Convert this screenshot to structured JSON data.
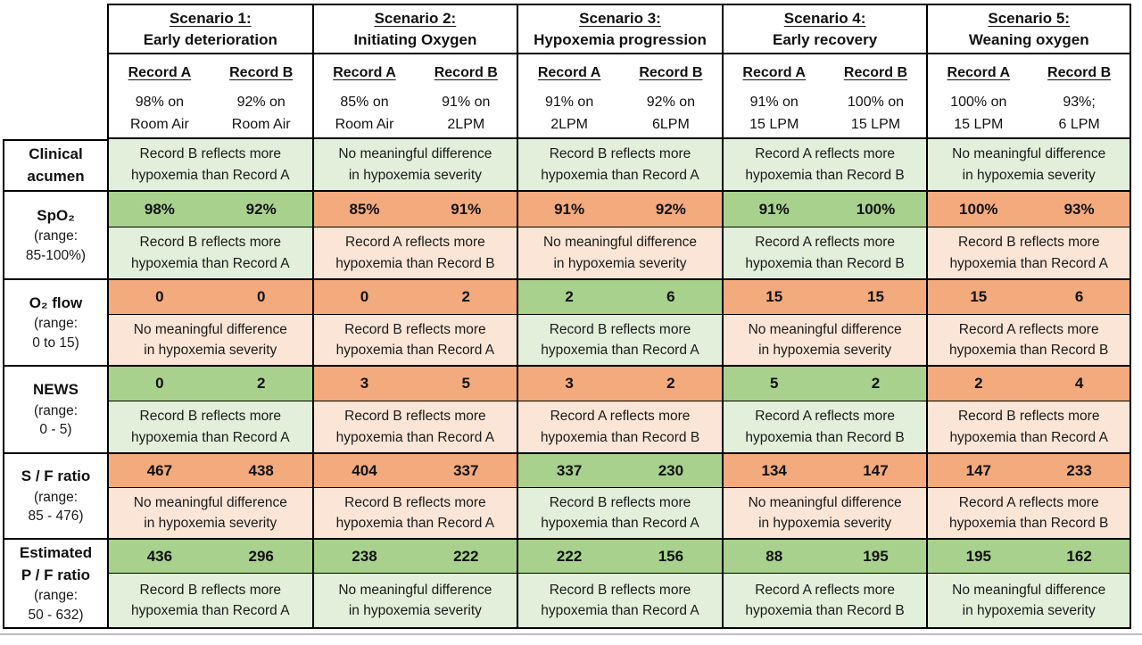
{
  "colors": {
    "border": "#000000",
    "value_green": "#a9d18e",
    "value_orange": "#f3aa7d",
    "verdict_green": "#e2efda",
    "verdict_orange": "#fbe5d6",
    "shadow": "#bdbdbd"
  },
  "scenarios": [
    {
      "title": "Scenario 1:",
      "subtitle": "Early deterioration",
      "record_a": "Record A",
      "record_b": "Record B",
      "a1": "98% on",
      "a2": "Room Air",
      "b1": "92% on",
      "b2": "Room Air"
    },
    {
      "title": "Scenario 2:",
      "subtitle": "Initiating Oxygen",
      "record_a": "Record A",
      "record_b": "Record B",
      "a1": "85% on",
      "a2": "Room Air",
      "b1": "91% on",
      "b2": "2LPM"
    },
    {
      "title": "Scenario 3:",
      "subtitle": "Hypoxemia progression",
      "record_a": "Record A",
      "record_b": "Record B",
      "a1": "91% on",
      "a2": "2LPM",
      "b1": "92% on",
      "b2": "6LPM"
    },
    {
      "title": "Scenario 4:",
      "subtitle": "Early recovery",
      "record_a": "Record A",
      "record_b": "Record B",
      "a1": "91% on",
      "a2": "15 LPM",
      "b1": "100% on",
      "b2": "15 LPM"
    },
    {
      "title": "Scenario 5:",
      "subtitle": "Weaning oxygen",
      "record_a": "Record A",
      "record_b": "Record B",
      "a1": "100% on",
      "a2": "15 LPM",
      "b1": "93%;",
      "b2": "6 LPM"
    }
  ],
  "acumen": {
    "n1": "Clinical",
    "n2": "acumen",
    "cells": [
      {
        "tone": "green",
        "v1": "Record B reflects more",
        "v2": "hypoxemia than Record A"
      },
      {
        "tone": "green",
        "v1": "No meaningful difference",
        "v2": "in hypoxemia severity"
      },
      {
        "tone": "green",
        "v1": "Record B reflects more",
        "v2": "hypoxemia than Record A"
      },
      {
        "tone": "green",
        "v1": "Record A reflects more",
        "v2": "hypoxemia than Record B"
      },
      {
        "tone": "green",
        "v1": "No meaningful difference",
        "v2": "in hypoxemia severity"
      }
    ]
  },
  "metrics": [
    {
      "n1": "SpO₂",
      "n2": "",
      "r1": "(range:",
      "r2": "85-100%)",
      "cells": [
        {
          "a": "98%",
          "b": "92%",
          "tone": "green",
          "v1": "Record B reflects more",
          "v2": "hypoxemia than Record A"
        },
        {
          "a": "85%",
          "b": "91%",
          "tone": "orange",
          "v1": "Record A reflects more",
          "v2": "hypoxemia than Record B"
        },
        {
          "a": "91%",
          "b": "92%",
          "tone": "orange",
          "v1": "No meaningful difference",
          "v2": "in hypoxemia severity"
        },
        {
          "a": "91%",
          "b": "100%",
          "tone": "green",
          "v1": "Record A reflects more",
          "v2": "hypoxemia than Record B"
        },
        {
          "a": "100%",
          "b": "93%",
          "tone": "orange",
          "v1": "Record B reflects more",
          "v2": "hypoxemia than Record A"
        }
      ]
    },
    {
      "n1": "O₂ flow",
      "n2": "",
      "r1": "(range:",
      "r2": "0 to 15)",
      "cells": [
        {
          "a": "0",
          "b": "0",
          "tone": "orange",
          "v1": "No meaningful difference",
          "v2": "in hypoxemia severity"
        },
        {
          "a": "0",
          "b": "2",
          "tone": "orange",
          "v1": "Record B reflects more",
          "v2": "hypoxemia than Record A"
        },
        {
          "a": "2",
          "b": "6",
          "tone": "green",
          "v1": "Record B reflects more",
          "v2": "hypoxemia than Record A"
        },
        {
          "a": "15",
          "b": "15",
          "tone": "orange",
          "v1": "No meaningful difference",
          "v2": "in hypoxemia severity"
        },
        {
          "a": "15",
          "b": "6",
          "tone": "orange",
          "v1": "Record A reflects more",
          "v2": "hypoxemia than Record B"
        }
      ]
    },
    {
      "n1": "NEWS",
      "n2": "",
      "r1": "(range:",
      "r2": "0 - 5)",
      "cells": [
        {
          "a": "0",
          "b": "2",
          "tone": "green",
          "v1": "Record B reflects more",
          "v2": "hypoxemia than Record A"
        },
        {
          "a": "3",
          "b": "5",
          "tone": "orange",
          "v1": "Record B reflects more",
          "v2": "hypoxemia than Record A"
        },
        {
          "a": "3",
          "b": "2",
          "tone": "orange",
          "v1": "Record A reflects more",
          "v2": "hypoxemia than Record B"
        },
        {
          "a": "5",
          "b": "2",
          "tone": "green",
          "v1": "Record A reflects more",
          "v2": "hypoxemia than Record B"
        },
        {
          "a": "2",
          "b": "4",
          "tone": "orange",
          "v1": "Record B reflects more",
          "v2": "hypoxemia than Record A"
        }
      ]
    },
    {
      "n1": "S / F ratio",
      "n2": "",
      "r1": "(range:",
      "r2": "85 - 476)",
      "cells": [
        {
          "a": "467",
          "b": "438",
          "tone": "orange",
          "v1": "No meaningful difference",
          "v2": "in hypoxemia severity"
        },
        {
          "a": "404",
          "b": "337",
          "tone": "orange",
          "v1": "Record B reflects more",
          "v2": "hypoxemia than Record A"
        },
        {
          "a": "337",
          "b": "230",
          "tone": "green",
          "v1": "Record B reflects more",
          "v2": "hypoxemia than Record A"
        },
        {
          "a": "134",
          "b": "147",
          "tone": "orange",
          "v1": "No meaningful difference",
          "v2": "in hypoxemia severity"
        },
        {
          "a": "147",
          "b": "233",
          "tone": "orange",
          "v1": "Record A reflects more",
          "v2": "hypoxemia than Record B"
        }
      ]
    },
    {
      "n1": "Estimated",
      "n2": "P / F ratio",
      "r1": "(range:",
      "r2": "50 - 632)",
      "cells": [
        {
          "a": "436",
          "b": "296",
          "tone": "green",
          "v1": "Record B reflects more",
          "v2": "hypoxemia than Record A"
        },
        {
          "a": "238",
          "b": "222",
          "tone": "green",
          "v1": "No meaningful difference",
          "v2": "in hypoxemia severity"
        },
        {
          "a": "222",
          "b": "156",
          "tone": "green",
          "v1": "Record B reflects more",
          "v2": "hypoxemia than Record A"
        },
        {
          "a": "88",
          "b": "195",
          "tone": "green",
          "v1": "Record A reflects more",
          "v2": "hypoxemia than Record B"
        },
        {
          "a": "195",
          "b": "162",
          "tone": "green",
          "v1": "No meaningful difference",
          "v2": "in hypoxemia severity"
        }
      ]
    }
  ]
}
